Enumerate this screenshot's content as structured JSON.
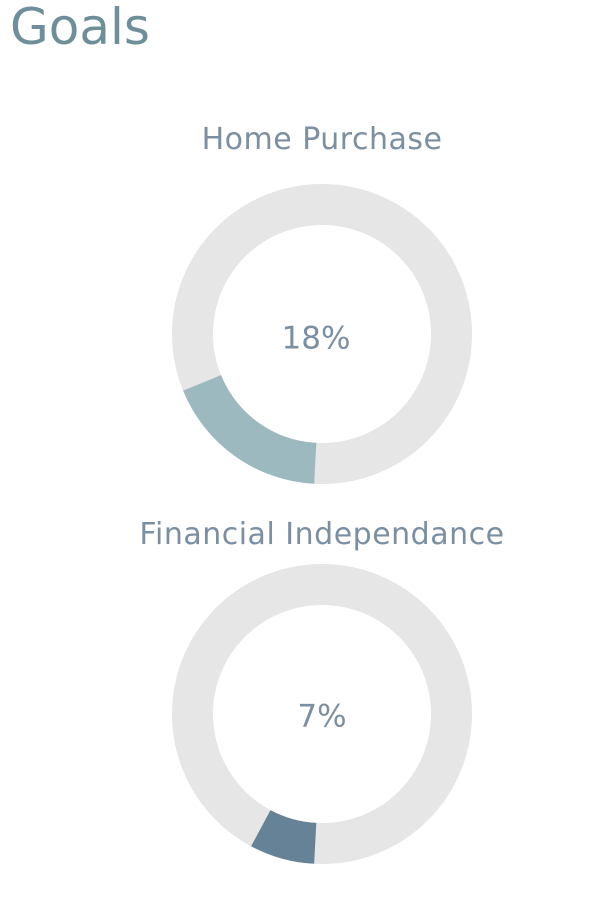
{
  "page": {
    "title": "Goals"
  },
  "goals": [
    {
      "name": "Home Purchase",
      "percent_label": "18%",
      "progress": 0.18,
      "color": "#9bb9bf",
      "track_color": "#e6e6e6"
    },
    {
      "name": "Financial Independance",
      "percent_label": "7%",
      "progress": 0.07,
      "color": "#658296",
      "track_color": "#e6e6e6"
    }
  ]
}
